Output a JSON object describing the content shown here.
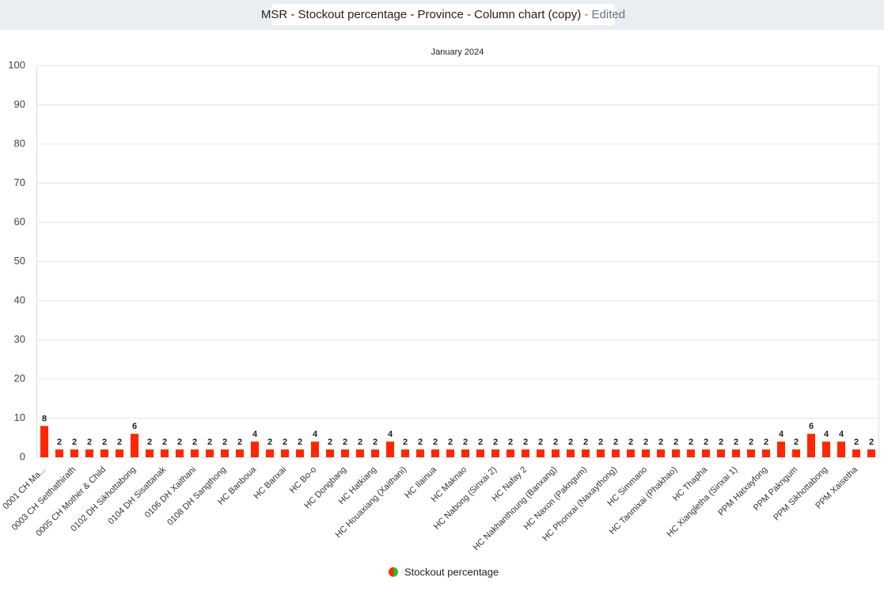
{
  "header": {
    "title": "MSR - Stockout percentage - Province - Column chart (copy)",
    "status": "- Edited"
  },
  "chart_data": {
    "type": "bar",
    "subtitle": "January 2024",
    "categories": [
      "0001 CH Ma...",
      null,
      "0003 CH Setthathirath",
      null,
      "0005 CH Mother & Child",
      null,
      "0102 DH Sikhottabong",
      null,
      "0104 DH Sisattanak",
      null,
      "0106 DH Xaithani",
      null,
      "0108 DH Sangthong",
      null,
      "HC Banboua",
      null,
      "HC Banxai",
      null,
      "HC Bo-o",
      null,
      "HC Dongbang",
      null,
      "HC Hatkiang",
      null,
      "HC Houaxiang (Xaithani)",
      null,
      "HC Ilainua",
      null,
      "HC Maknao",
      null,
      "HC Nabong (Sinxai 2)",
      null,
      "HC Nafay 2",
      null,
      "HC Nakhanthoung (Banxang)",
      null,
      "HC Naxon (Pakngum)",
      null,
      "HC Phonxai (Naxaythong)",
      null,
      "HC Simmano",
      null,
      "HC Tanmixai (Phakhao)",
      null,
      "HC Thapha",
      null,
      "HC Xiangletha (Sinxai 1)",
      null,
      "PPM Hatxayfong",
      null,
      "PPM Pakngum",
      null,
      "PPM Sikhottabong",
      null,
      "PPM Xaisetha",
      null
    ],
    "series": [
      {
        "name": "Stockout percentage",
        "color": "#ff2600",
        "values": [
          8,
          2,
          2,
          2,
          2,
          2,
          6,
          2,
          2,
          2,
          2,
          2,
          2,
          2,
          4,
          2,
          2,
          2,
          4,
          2,
          2,
          2,
          2,
          4,
          2,
          2,
          2,
          2,
          2,
          2,
          2,
          2,
          2,
          2,
          2,
          2,
          2,
          2,
          2,
          2,
          2,
          2,
          2,
          2,
          2,
          2,
          2,
          2,
          2,
          4,
          2,
          6,
          4,
          4,
          2,
          2
        ]
      }
    ],
    "ylim": [
      0,
      100
    ],
    "yticks": [
      0,
      10,
      20,
      30,
      40,
      50,
      60,
      70,
      80,
      90,
      100
    ],
    "grid": true,
    "legend": "bottom"
  }
}
